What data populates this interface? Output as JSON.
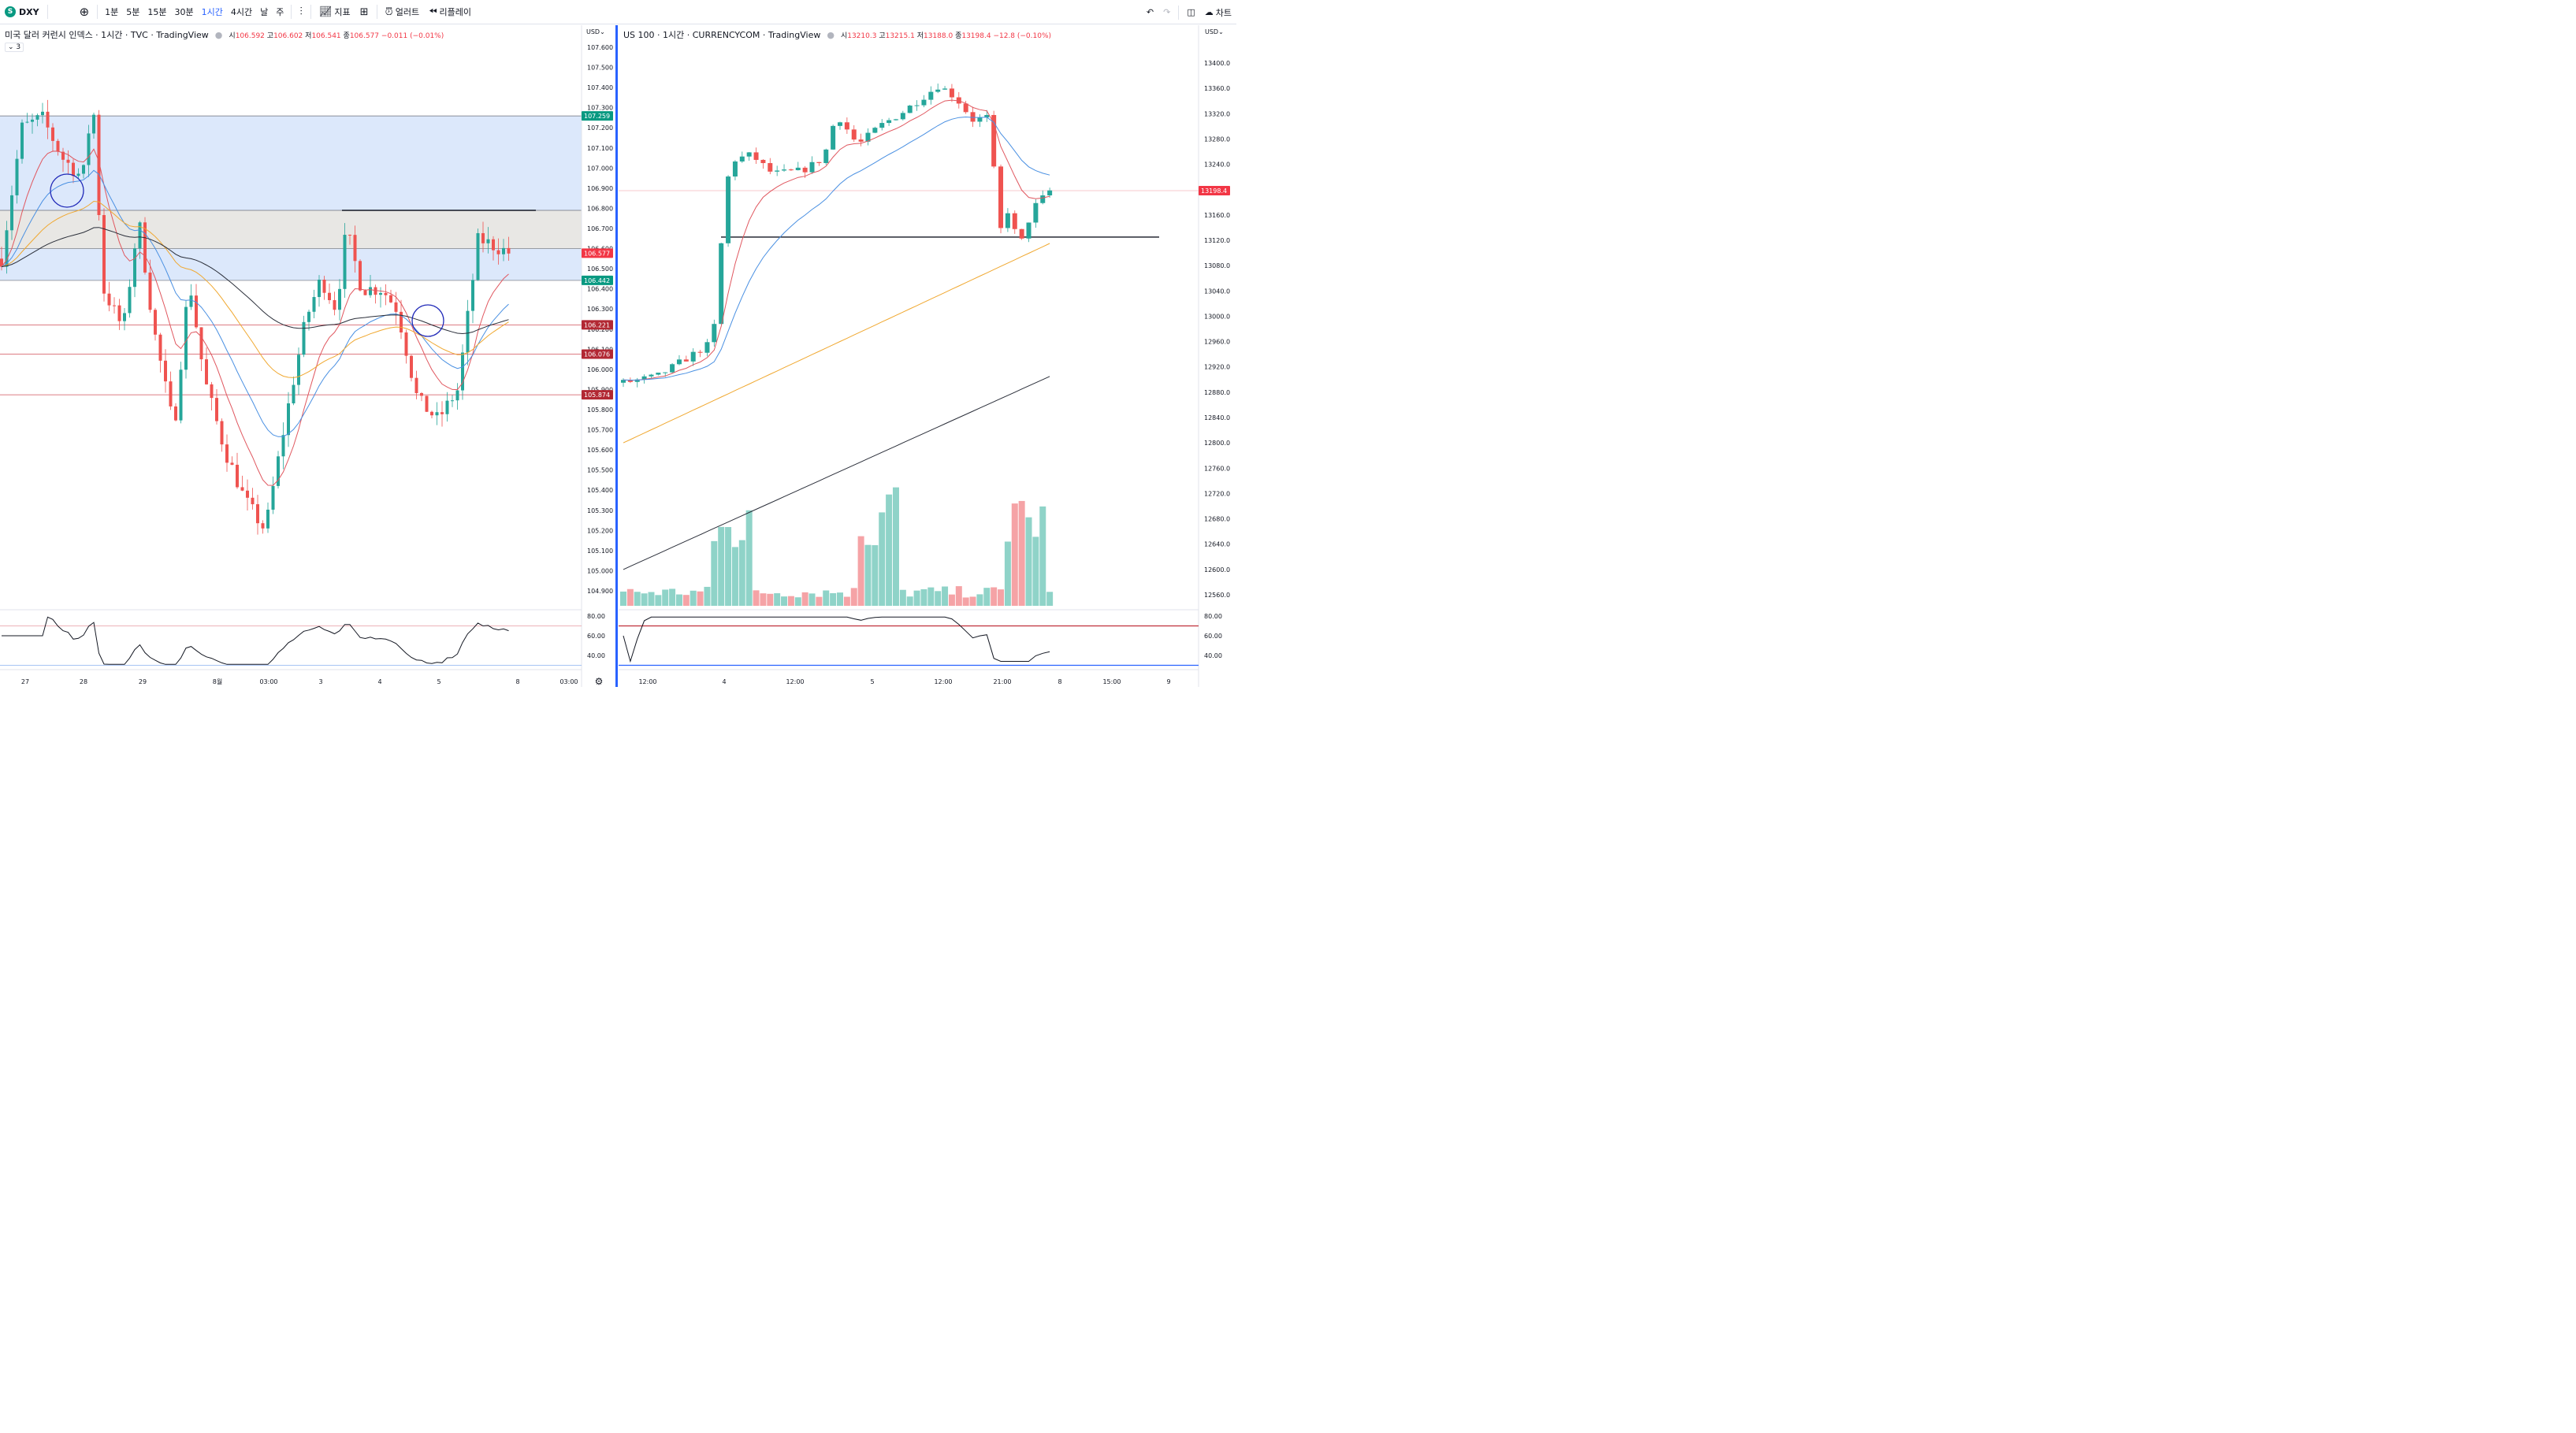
{
  "toolbar": {
    "symbol": "DXY",
    "symbol_badge": "S",
    "add_icon": "plus-circle-icon",
    "timeframes": [
      "1분",
      "5분",
      "15분",
      "30분",
      "1시간",
      "4시간",
      "날",
      "주"
    ],
    "active_timeframe": "1시간",
    "indicators_label": "지표",
    "alert_label": "얼러트",
    "replay_label": "리플레이",
    "right_label": "차트"
  },
  "left_chart": {
    "title": "미국 달러 커런시 인덱스 · 1시간 · TVC · TradingView",
    "ohlc": {
      "o_label": "시",
      "o": "106.592",
      "h_label": "고",
      "h": "106.602",
      "l_label": "저",
      "l": "106.541",
      "c_label": "종",
      "c": "106.577",
      "chg": "−0.011 (−0.01%)"
    },
    "indicator_count": "3",
    "currency": "USD",
    "price_ticks": [
      "107.600",
      "107.500",
      "107.400",
      "107.300",
      "107.200",
      "107.100",
      "107.000",
      "106.900",
      "106.800",
      "106.700",
      "106.600",
      "106.500",
      "106.400",
      "106.300",
      "106.200",
      "106.100",
      "106.000",
      "105.900",
      "105.800",
      "105.700",
      "105.600",
      "105.500",
      "105.400",
      "105.300",
      "105.200",
      "105.100",
      "105.000",
      "104.900"
    ],
    "price_labels": [
      {
        "value": "107.259",
        "color": "#089981"
      },
      {
        "value": "106.577",
        "color": "#f23645"
      },
      {
        "value": "106.442",
        "color": "#089981"
      },
      {
        "value": "106.221",
        "color": "#b22833"
      },
      {
        "value": "106.076",
        "color": "#b22833"
      },
      {
        "value": "105.874",
        "color": "#b22833"
      }
    ],
    "rsi_ticks": [
      "80.00",
      "60.00",
      "40.00"
    ],
    "time_ticks": [
      "27",
      "28",
      "29",
      "8월",
      "03:00",
      "3",
      "4",
      "5",
      "8",
      "03:00"
    ],
    "gear_icon": "gear-icon"
  },
  "right_chart": {
    "title": "US 100 · 1시간 · CURRENCYCOM · TradingView",
    "ohlc": {
      "o_label": "시",
      "o": "13210.3",
      "h_label": "고",
      "h": "13215.1",
      "l_label": "저",
      "l": "13188.0",
      "c_label": "종",
      "c": "13198.4",
      "chg": "−12.8 (−0.10%)"
    },
    "currency": "USD",
    "price_ticks": [
      "13400.0",
      "13360.0",
      "13320.0",
      "13280.0",
      "13240.0",
      "13200.0",
      "13160.0",
      "13120.0",
      "13080.0",
      "13040.0",
      "13000.0",
      "12960.0",
      "12920.0",
      "12880.0",
      "12840.0",
      "12800.0",
      "12760.0",
      "12720.0",
      "12680.0",
      "12640.0",
      "12600.0",
      "12560.0"
    ],
    "price_label": {
      "value": "13198.4",
      "color": "#f23645"
    },
    "rsi_ticks": [
      "80.00",
      "60.00",
      "40.00"
    ],
    "time_ticks": [
      "12:00",
      "4",
      "12:00",
      "5",
      "12:00",
      "21:00",
      "8",
      "15:00",
      "9"
    ]
  },
  "colors": {
    "up": "#26a69a",
    "down": "#ef5350",
    "accent": "#2962ff",
    "zone": "#dce8fb",
    "band": "#e9e7e1"
  }
}
